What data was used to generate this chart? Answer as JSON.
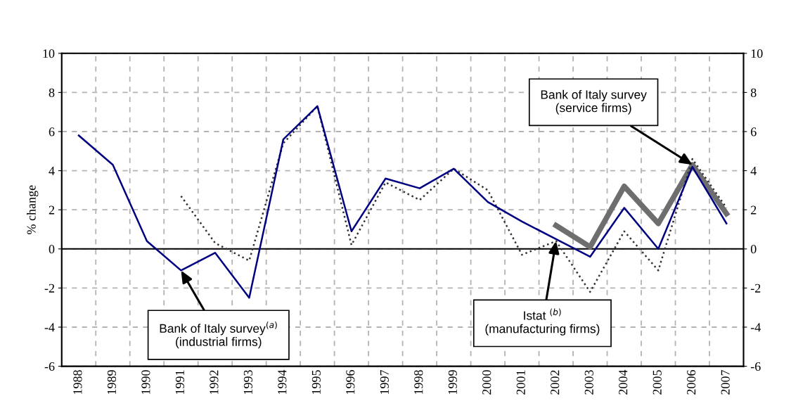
{
  "chart_data": {
    "type": "line",
    "ylabel": "% change",
    "categories": [
      "1988",
      "1989",
      "1990",
      "1991",
      "1992",
      "1993",
      "1994",
      "1995",
      "1996",
      "1997",
      "1998",
      "1999",
      "2000",
      "2001",
      "2002",
      "2003",
      "2004",
      "2005",
      "2006",
      "2007"
    ],
    "series": [
      {
        "color": "#000080",
        "line_style": "solid",
        "values": [
          5.8,
          4.3,
          0.4,
          -1.1,
          -0.2,
          -2.5,
          5.6,
          7.3,
          0.9,
          3.6,
          3.1,
          4.1,
          2.4,
          1.4,
          0.5,
          -0.4,
          2.1,
          0.0,
          4.2,
          1.3
        ]
      },
      {
        "color": "#333333",
        "line_style": "dotted",
        "values": [
          null,
          null,
          null,
          2.7,
          0.3,
          -0.6,
          5.4,
          7.3,
          0.2,
          3.4,
          2.5,
          4.1,
          3.0,
          -0.3,
          0.4,
          -2.2,
          0.9,
          -1.1,
          4.6,
          2.1
        ]
      },
      {
        "color": "#6e6e6e",
        "line_style": "solid",
        "values": [
          null,
          null,
          null,
          null,
          null,
          null,
          null,
          null,
          null,
          null,
          null,
          null,
          null,
          null,
          1.2,
          0.1,
          3.2,
          1.3,
          4.3,
          1.8
        ]
      }
    ],
    "ylim": [
      -6,
      10
    ],
    "yticks": [
      -6,
      -4,
      -2,
      0,
      2,
      4,
      6,
      8,
      10
    ],
    "y2lim": [
      -6,
      10
    ],
    "y2ticks": [
      -6,
      -4,
      -2,
      0,
      2,
      4,
      6,
      8,
      10
    ],
    "ref_lines": [
      {
        "axis": "y",
        "value": 0,
        "color": "#000000"
      }
    ],
    "grid": true,
    "marker": "none",
    "annotations": [
      {
        "text": "Bank of Italy survey$^{(a)}$\n(industrial firms)",
        "x": "1991",
        "y": -1.1
      },
      {
        "text": "Istat $^{(b)}$\n(manufacturing firms)",
        "x": "2002",
        "y": 0.4
      },
      {
        "text": "Bank of Italy survey\n(service firms)",
        "x": "2006",
        "y": 4.3
      }
    ]
  }
}
